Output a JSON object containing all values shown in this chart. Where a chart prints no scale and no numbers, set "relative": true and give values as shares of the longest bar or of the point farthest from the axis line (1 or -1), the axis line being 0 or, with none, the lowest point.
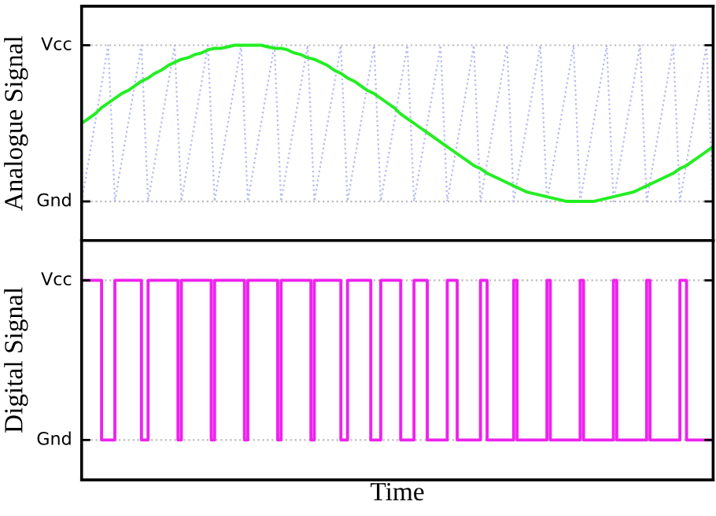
{
  "chart_data": [
    {
      "type": "line",
      "ylabel": "Analogue Signal",
      "relative": true,
      "ref_lines": [
        {
          "axis": "y",
          "value": 0,
          "label": "Gnd",
          "color": "#bbbbbb",
          "line_style": "dotted"
        },
        {
          "axis": "y",
          "value": 1,
          "label": "Vcc",
          "color": "#bbbbbb",
          "line_style": "dotted"
        }
      ],
      "tick_labels": false,
      "categories": [
        null,
        null,
        null,
        null,
        null,
        null,
        null,
        null,
        null,
        null,
        null,
        null,
        null,
        null,
        null,
        null,
        null,
        null,
        null,
        null,
        null,
        null,
        null,
        null,
        null,
        null,
        null,
        null,
        null,
        null,
        null,
        null,
        null,
        null,
        null,
        null,
        null,
        null,
        null,
        null,
        null,
        null,
        null,
        null,
        null,
        null,
        null,
        null,
        null,
        null,
        null,
        null,
        null,
        null,
        null,
        null,
        null,
        null,
        null,
        null,
        null,
        null,
        null,
        null,
        null,
        null,
        null,
        null,
        null,
        null,
        null,
        null,
        null,
        null,
        null,
        null,
        null,
        null,
        null,
        null,
        null,
        null,
        null,
        null,
        null,
        null,
        null,
        null,
        null,
        null,
        null,
        null,
        null,
        null,
        null,
        null
      ],
      "series": [
        {
          "color": "#b4b8f0",
          "line_style": "dotted",
          "values": [
            0,
            0.25,
            0.5,
            0.75,
            1,
            0,
            0.25,
            0.5,
            0.75,
            1,
            0,
            0.25,
            0.5,
            0.75,
            1,
            0,
            0.25,
            0.5,
            0.75,
            1,
            0,
            0.25,
            0.5,
            0.75,
            1,
            0,
            0.25,
            0.5,
            0.75,
            1,
            0,
            0.25,
            0.5,
            0.75,
            1,
            0,
            0.25,
            0.5,
            0.75,
            1,
            0,
            0.25,
            0.5,
            0.75,
            1,
            0,
            0.25,
            0.5,
            0.75,
            1,
            0,
            0.25,
            0.5,
            0.75,
            1,
            0,
            0.25,
            0.5,
            0.75,
            1,
            0,
            0.25,
            0.5,
            0.75,
            1,
            0,
            0.25,
            0.5,
            0.75,
            1,
            0,
            0.25,
            0.5,
            0.75,
            1,
            0,
            0.25,
            0.5,
            0.75,
            1,
            0,
            0.25,
            0.5,
            0.75,
            1,
            0,
            0.25,
            0.5,
            0.75,
            1,
            0,
            0.25,
            0.5,
            0.75,
            1,
            0
          ]
        },
        {
          "color": "#22ee22",
          "line_style": "solid",
          "values": [
            0.5,
            0.53,
            0.56,
            0.6,
            0.63,
            0.66,
            0.69,
            0.71,
            0.74,
            0.77,
            0.79,
            0.82,
            0.84,
            0.87,
            0.89,
            0.91,
            0.92,
            0.94,
            0.95,
            0.97,
            0.98,
            0.98,
            0.99,
            1.0,
            1.0,
            1.0,
            1.0,
            1.0,
            0.99,
            0.98,
            0.98,
            0.97,
            0.95,
            0.94,
            0.92,
            0.91,
            0.89,
            0.87,
            0.84,
            0.82,
            0.79,
            0.77,
            0.74,
            0.71,
            0.69,
            0.66,
            0.63,
            0.6,
            0.56,
            0.53,
            0.5,
            0.47,
            0.44,
            0.41,
            0.38,
            0.35,
            0.32,
            0.29,
            0.26,
            0.23,
            0.21,
            0.18,
            0.16,
            0.14,
            0.12,
            0.1,
            0.08,
            0.06,
            0.05,
            0.04,
            0.03,
            0.02,
            0.01,
            0.0,
            0.0,
            0.0,
            0.0,
            0.0,
            0.01,
            0.02,
            0.03,
            0.04,
            0.05,
            0.06,
            0.08,
            0.1,
            0.12,
            0.14,
            0.16,
            0.18,
            0.21,
            0.23,
            0.26,
            0.29,
            0.32,
            0.35
          ]
        }
      ]
    },
    {
      "type": "step",
      "ylabel": "Digital Signal",
      "xlabel": "Time",
      "relative": true,
      "ref_lines": [
        {
          "axis": "y",
          "value": 0,
          "label": "Gnd",
          "color": "#bbbbbb",
          "line_style": "dotted"
        },
        {
          "axis": "y",
          "value": 1,
          "label": "Vcc",
          "color": "#bbbbbb",
          "line_style": "dotted"
        }
      ],
      "tick_labels": false,
      "categories": [
        null,
        null,
        null,
        null,
        null,
        null,
        null,
        null,
        null,
        null,
        null,
        null,
        null,
        null,
        null,
        null,
        null,
        null,
        null,
        null,
        null,
        null,
        null,
        null,
        null,
        null,
        null,
        null,
        null,
        null,
        null,
        null,
        null,
        null,
        null,
        null,
        null,
        null,
        null,
        null,
        null,
        null,
        null,
        null,
        null,
        null,
        null,
        null,
        null,
        null,
        null,
        null,
        null,
        null,
        null,
        null,
        null,
        null,
        null,
        null,
        null,
        null,
        null,
        null,
        null,
        null,
        null,
        null,
        null,
        null,
        null,
        null,
        null,
        null,
        null,
        null,
        null,
        null,
        null,
        null,
        null,
        null,
        null,
        null,
        null,
        null,
        null,
        null,
        null,
        null,
        null,
        null,
        null,
        null,
        null,
        null,
        null,
        null,
        null,
        null,
        null,
        null,
        null,
        null,
        null,
        null,
        null,
        null,
        null,
        null,
        null,
        null,
        null,
        null,
        null,
        null,
        null,
        null,
        null,
        null,
        null,
        null,
        null,
        null,
        null,
        null,
        null,
        null,
        null,
        null,
        null,
        null,
        null,
        null,
        null,
        null,
        null,
        null,
        null,
        null,
        null,
        null,
        null,
        null,
        null,
        null,
        null,
        null,
        null,
        null,
        null,
        null,
        null,
        null,
        null,
        null,
        null,
        null,
        null,
        null,
        null,
        null,
        null,
        null,
        null,
        null,
        null,
        null,
        null,
        null,
        null,
        null,
        null,
        null,
        null,
        null,
        null,
        null,
        null,
        null,
        null,
        null,
        null,
        null,
        null,
        null,
        null,
        null,
        null,
        null,
        null
      ],
      "series": [
        {
          "color": "#ee22ee",
          "line_style": "solid",
          "values": [
            1,
            1,
            1,
            1,
            1,
            1,
            0,
            0,
            0,
            0,
            1,
            1,
            1,
            1,
            1,
            1,
            1,
            1,
            0,
            0,
            1,
            1,
            1,
            1,
            1,
            1,
            1,
            1,
            1,
            0,
            1,
            1,
            1,
            1,
            1,
            1,
            1,
            1,
            1,
            0,
            1,
            1,
            1,
            1,
            1,
            1,
            1,
            1,
            1,
            0,
            1,
            1,
            1,
            1,
            1,
            1,
            1,
            1,
            1,
            0,
            1,
            1,
            1,
            1,
            1,
            1,
            1,
            1,
            1,
            0,
            1,
            1,
            1,
            1,
            1,
            1,
            1,
            1,
            0,
            0,
            1,
            1,
            1,
            1,
            1,
            1,
            1,
            0,
            0,
            0,
            1,
            1,
            1,
            1,
            1,
            1,
            0,
            0,
            0,
            0,
            1,
            1,
            1,
            1,
            0,
            0,
            0,
            0,
            0,
            0,
            1,
            1,
            1,
            0,
            0,
            0,
            0,
            0,
            0,
            0,
            1,
            1,
            0,
            0,
            0,
            0,
            0,
            0,
            0,
            0,
            1,
            0,
            0,
            0,
            0,
            0,
            0,
            0,
            0,
            0,
            1,
            0,
            0,
            0,
            0,
            0,
            0,
            0,
            0,
            0,
            1,
            0,
            0,
            0,
            0,
            0,
            0,
            0,
            0,
            0,
            1,
            0,
            0,
            0,
            0,
            0,
            0,
            0,
            0,
            0,
            1,
            0,
            0,
            0,
            0,
            0,
            0,
            0,
            0,
            0,
            1,
            1,
            0,
            0,
            0,
            0,
            0,
            0,
            0,
            0,
            0
          ]
        }
      ]
    }
  ]
}
